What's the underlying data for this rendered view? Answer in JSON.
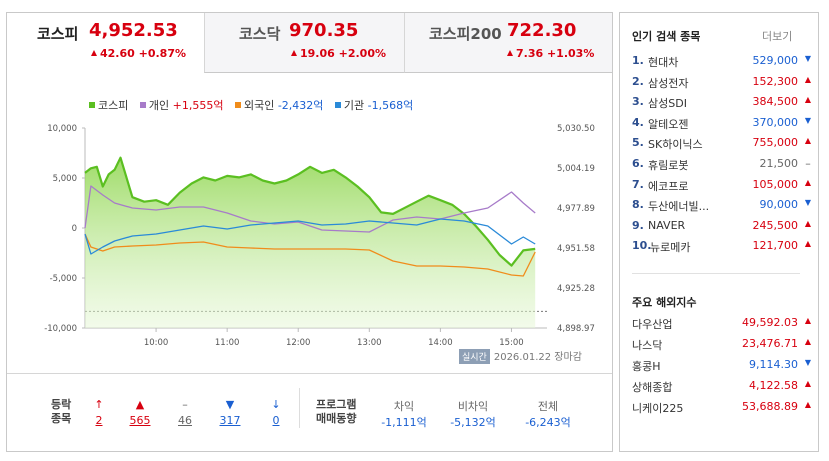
{
  "tabs": [
    {
      "name": "코스피",
      "value": "4,952.53",
      "change": "42.60 +0.87%"
    },
    {
      "name": "코스닥",
      "value": "970.35",
      "change": "19.06 +2.00%"
    },
    {
      "name": "코스피200",
      "value": "722.30",
      "change": "7.36 +1.03%"
    }
  ],
  "legend": [
    {
      "name": "코스피",
      "value": "",
      "color": "#5bbf21"
    },
    {
      "name": "개인",
      "value": "+1,555억",
      "color": "#a77bc9"
    },
    {
      "name": "외국인",
      "value": "-2,432억",
      "color": "#f08c1b"
    },
    {
      "name": "기관",
      "value": "-1,568억",
      "color": "#2a8ad8"
    }
  ],
  "stamp": {
    "badge": "실시간",
    "date": "2026.01.22",
    "status": "장마감"
  },
  "chart_data": {
    "type": "line",
    "x_ticks": [
      "10:00",
      "11:00",
      "12:00",
      "13:00",
      "14:00",
      "15:00"
    ],
    "x_range": [
      "09:00",
      "15:30"
    ],
    "left_axis": {
      "ticks": [
        "10,000",
        "5,000",
        "0",
        "-5,000",
        "-10,000"
      ],
      "range": [
        -10000,
        10000
      ],
      "unit": "억"
    },
    "right_axis": {
      "ticks": [
        "5,030.50",
        "5,004.19",
        "4,977.89",
        "4,951.58",
        "4,925.28",
        "4,898.97"
      ],
      "range": [
        4898.97,
        5030.5
      ]
    },
    "reference_line": 4909.93,
    "series": [
      {
        "name": "코스피",
        "axis": "right",
        "color": "#5bbf21",
        "x": [
          "09:00",
          "09:05",
          "09:10",
          "09:15",
          "09:20",
          "09:25",
          "09:30",
          "09:40",
          "09:50",
          "10:00",
          "10:10",
          "10:20",
          "10:30",
          "10:40",
          "10:50",
          "11:00",
          "11:10",
          "11:20",
          "11:30",
          "11:40",
          "11:50",
          "12:00",
          "12:10",
          "12:20",
          "12:30",
          "12:40",
          "12:50",
          "13:00",
          "13:10",
          "13:20",
          "13:30",
          "13:40",
          "13:50",
          "14:00",
          "14:10",
          "14:20",
          "14:30",
          "14:40",
          "14:50",
          "15:00",
          "15:10",
          "15:20"
        ],
        "y": [
          5001,
          5004,
          5005,
          4992,
          5000,
          5003,
          5011,
          4985,
          4982,
          4983,
          4980,
          4988,
          4994,
          4998,
          4996,
          4999,
          4998,
          5000,
          4996,
          4994,
          4996,
          5000,
          5005,
          5001,
          5003,
          4998,
          4992,
          4985,
          4975,
          4974,
          4978,
          4982,
          4986,
          4983,
          4980,
          4974,
          4966,
          4957,
          4947,
          4940,
          4950,
          4951
        ]
      },
      {
        "name": "개인",
        "axis": "left",
        "color": "#a77bc9",
        "x": [
          "09:00",
          "09:05",
          "09:15",
          "09:25",
          "09:40",
          "10:00",
          "10:20",
          "10:40",
          "11:00",
          "11:20",
          "11:40",
          "12:00",
          "12:20",
          "12:40",
          "13:00",
          "13:20",
          "13:40",
          "14:00",
          "14:20",
          "14:40",
          "15:00",
          "15:10",
          "15:20"
        ],
        "y": [
          0,
          4200,
          3300,
          2500,
          2000,
          1800,
          2100,
          2100,
          1500,
          700,
          400,
          600,
          -200,
          -300,
          -400,
          800,
          1100,
          900,
          1500,
          2000,
          3600,
          2500,
          1500
        ]
      },
      {
        "name": "외국인",
        "axis": "left",
        "color": "#f08c1b",
        "x": [
          "09:00",
          "09:05",
          "09:15",
          "09:25",
          "09:40",
          "10:00",
          "10:20",
          "10:40",
          "11:00",
          "11:20",
          "11:40",
          "12:00",
          "12:20",
          "12:40",
          "13:00",
          "13:20",
          "13:40",
          "14:00",
          "14:20",
          "14:40",
          "15:00",
          "15:10",
          "15:20"
        ],
        "y": [
          -600,
          -1900,
          -2300,
          -1900,
          -1800,
          -1700,
          -1500,
          -1400,
          -1900,
          -2000,
          -2100,
          -2100,
          -2100,
          -2100,
          -2200,
          -3300,
          -3800,
          -3800,
          -3900,
          -4100,
          -4700,
          -4800,
          -2400
        ]
      },
      {
        "name": "기관",
        "axis": "left",
        "color": "#2a8ad8",
        "x": [
          "09:00",
          "09:05",
          "09:15",
          "09:25",
          "09:40",
          "10:00",
          "10:20",
          "10:40",
          "11:00",
          "11:20",
          "11:40",
          "12:00",
          "12:20",
          "12:40",
          "13:00",
          "13:20",
          "13:40",
          "14:00",
          "14:20",
          "14:40",
          "15:00",
          "15:10",
          "15:20"
        ],
        "y": [
          -600,
          -2600,
          -1900,
          -1300,
          -800,
          -600,
          -200,
          200,
          -100,
          300,
          500,
          700,
          300,
          400,
          700,
          500,
          300,
          900,
          700,
          200,
          -1600,
          -900,
          -1600
        ]
      }
    ]
  },
  "summary": {
    "label_top": "등락",
    "label_bottom": "종목",
    "items": [
      {
        "icon": "↑",
        "value": "2",
        "tone": "up"
      },
      {
        "icon": "▲",
        "value": "565",
        "tone": "up"
      },
      {
        "icon": "–",
        "value": "46",
        "tone": "gray"
      },
      {
        "icon": "▼",
        "value": "317",
        "tone": "dn"
      },
      {
        "icon": "↓",
        "value": "0",
        "tone": "dn"
      }
    ]
  },
  "program": {
    "label_top": "프로그램",
    "label_bottom": "매매동향",
    "cols": [
      {
        "header": "차익",
        "value": "-1,111억"
      },
      {
        "header": "비차익",
        "value": "-5,132억"
      },
      {
        "header": "전체",
        "value": "-6,243억"
      }
    ]
  },
  "popular": {
    "title": "인기 검색 종목",
    "more": "더보기",
    "items": [
      {
        "rank": "1.",
        "name": "현대차",
        "price": "529,000",
        "dir": "down"
      },
      {
        "rank": "2.",
        "name": "삼성전자",
        "price": "152,300",
        "dir": "up"
      },
      {
        "rank": "3.",
        "name": "삼성SDI",
        "price": "384,500",
        "dir": "up"
      },
      {
        "rank": "4.",
        "name": "알테오젠",
        "price": "370,000",
        "dir": "down"
      },
      {
        "rank": "5.",
        "name": "SK하이닉스",
        "price": "755,000",
        "dir": "up"
      },
      {
        "rank": "6.",
        "name": "휴림로봇",
        "price": "21,500",
        "dir": "flat"
      },
      {
        "rank": "7.",
        "name": "에코프로",
        "price": "105,000",
        "dir": "up"
      },
      {
        "rank": "8.",
        "name": "두산에너빌...",
        "price": "90,000",
        "dir": "down"
      },
      {
        "rank": "9.",
        "name": "NAVER",
        "price": "245,500",
        "dir": "up"
      },
      {
        "rank": "10.",
        "name": "뉴로메카",
        "price": "121,700",
        "dir": "up"
      }
    ]
  },
  "overseas": {
    "title": "주요 해외지수",
    "items": [
      {
        "name": "다우산업",
        "value": "49,592.03",
        "dir": "up"
      },
      {
        "name": "나스닥",
        "value": "23,476.71",
        "dir": "up"
      },
      {
        "name": "홍콩H",
        "value": "9,114.30",
        "dir": "down"
      },
      {
        "name": "상해종합",
        "value": "4,122.58",
        "dir": "up"
      },
      {
        "name": "니케이225",
        "value": "53,688.89",
        "dir": "up"
      }
    ]
  }
}
